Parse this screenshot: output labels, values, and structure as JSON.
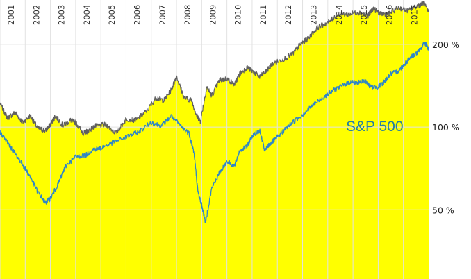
{
  "colors": {
    "fill": "#ffff00",
    "fund_line": "#606060",
    "sp500_line": "#2f86c6",
    "grid": "#e2e2e2",
    "sp500_label": "#237ea2",
    "background": "#ffffff"
  },
  "chart_data": {
    "type": "area",
    "title": "",
    "xlabel": "",
    "ylabel": "",
    "yscale": "log",
    "ylim": [
      28,
      290
    ],
    "xlim": [
      2001.0,
      2018.0
    ],
    "grid": true,
    "x_tick_labels": [
      "2001",
      "2002",
      "2003",
      "2004",
      "2005",
      "2006",
      "2007",
      "2008",
      "2009",
      "2010",
      "2011",
      "2012",
      "2013",
      "2014",
      "2015",
      "2016",
      "2017"
    ],
    "y_ticks": [
      {
        "value": 50,
        "label": "50 %"
      },
      {
        "value": 100,
        "label": "100 %"
      },
      {
        "value": 200,
        "label": "200 %"
      }
    ],
    "series": [
      {
        "key": "fund",
        "style": "area",
        "x": [
          2001.0,
          2001.3,
          2001.6,
          2001.9,
          2002.2,
          2002.5,
          2002.8,
          2003.0,
          2003.2,
          2003.5,
          2003.8,
          2004.0,
          2004.3,
          2004.5,
          2004.8,
          2005.2,
          2005.6,
          2006.0,
          2006.4,
          2006.8,
          2007.2,
          2007.5,
          2007.8,
          2008.0,
          2008.3,
          2008.6,
          2008.8,
          2008.95,
          2009.2,
          2009.4,
          2009.7,
          2010.0,
          2010.3,
          2010.5,
          2010.8,
          2011.0,
          2011.3,
          2011.6,
          2011.8,
          2012.2,
          2012.6,
          2012.9,
          2013.2,
          2013.6,
          2014.0,
          2014.4,
          2014.8,
          2015.2,
          2015.6,
          2015.8,
          2016.1,
          2016.4,
          2016.8,
          2017.2,
          2017.6,
          2017.8,
          2018.0
        ],
        "y": [
          122,
          108,
          113,
          104,
          110,
          99,
          97,
          102,
          110,
          101,
          106,
          104,
          95,
          97,
          101,
          102,
          95,
          107,
          106,
          114,
          128,
          125,
          137,
          153,
          128,
          125,
          110,
          105,
          140,
          130,
          148,
          150,
          143,
          156,
          165,
          160,
          152,
          161,
          170,
          176,
          184,
          200,
          209,
          231,
          240,
          258,
          257,
          262,
          255,
          270,
          258,
          258,
          272,
          265,
          278,
          283,
          262
        ]
      },
      {
        "key": "sp500",
        "name": "S&P 500",
        "style": "line",
        "x": [
          2001.0,
          2001.3,
          2001.6,
          2001.9,
          2002.2,
          2002.5,
          2002.8,
          2003.0,
          2003.3,
          2003.6,
          2004.0,
          2004.4,
          2004.7,
          2005.0,
          2005.5,
          2006.0,
          2006.5,
          2007.0,
          2007.4,
          2007.8,
          2008.2,
          2008.5,
          2008.7,
          2008.85,
          2009.0,
          2009.15,
          2009.4,
          2009.7,
          2010.0,
          2010.3,
          2010.5,
          2010.8,
          2011.0,
          2011.3,
          2011.5,
          2011.7,
          2011.9,
          2012.3,
          2012.6,
          2013.0,
          2013.4,
          2013.8,
          2014.2,
          2014.6,
          2014.9,
          2015.2,
          2015.5,
          2015.7,
          2016.0,
          2016.2,
          2016.5,
          2016.8,
          2017.0,
          2017.3,
          2017.6,
          2017.85,
          2018.0
        ],
        "y": [
          96,
          88,
          80,
          73,
          66,
          58,
          53,
          55,
          62,
          72,
          78,
          79,
          83,
          84,
          88,
          92,
          96,
          104,
          101,
          110,
          100,
          95,
          80,
          58,
          52,
          45,
          60,
          68,
          75,
          72,
          82,
          85,
          93,
          97,
          82,
          87,
          90,
          98,
          104,
          111,
          120,
          128,
          136,
          142,
          146,
          145,
          147,
          140,
          140,
          145,
          156,
          160,
          168,
          180,
          188,
          203,
          192
        ]
      }
    ]
  }
}
